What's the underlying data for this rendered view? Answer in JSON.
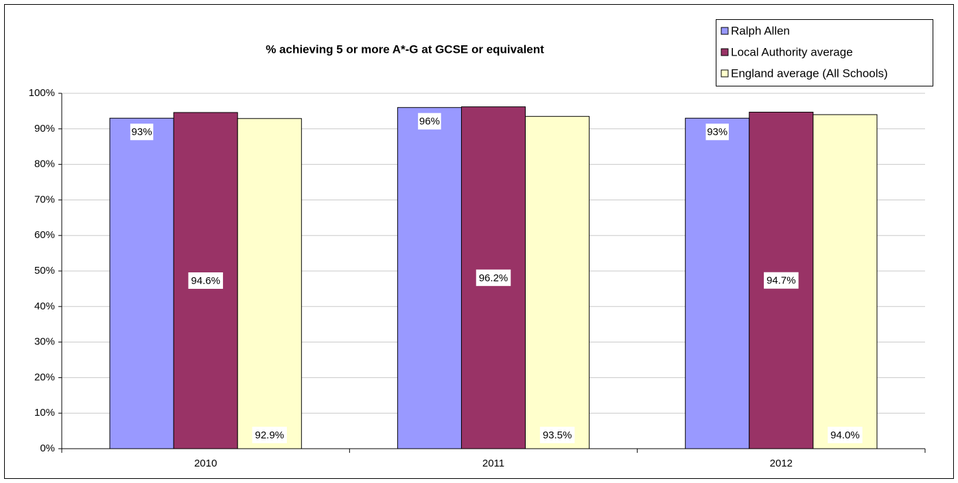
{
  "chart_data": {
    "type": "bar",
    "title": "% achieving 5 or more A*-G at GCSE or equivalent",
    "categories": [
      "2010",
      "2011",
      "2012"
    ],
    "series": [
      {
        "name": "Ralph Allen",
        "color": "#9999ff",
        "values": [
          93,
          96,
          93
        ],
        "value_labels": [
          "93%",
          "96%",
          "93%"
        ]
      },
      {
        "name": "Local Authority average",
        "color": "#993366",
        "values": [
          94.6,
          96.2,
          94.7
        ],
        "value_labels": [
          "94.6%",
          "96.2%",
          "94.7%"
        ]
      },
      {
        "name": "England average (All Schools)",
        "color": "#ffffcc",
        "values": [
          92.9,
          93.5,
          94.0
        ],
        "value_labels": [
          "92.9%",
          "93.5%",
          "94.0%"
        ]
      }
    ],
    "ylim": [
      0,
      100
    ],
    "yticks": [
      {
        "value": 0,
        "label": "0%"
      },
      {
        "value": 10,
        "label": "10%"
      },
      {
        "value": 20,
        "label": "20%"
      },
      {
        "value": 30,
        "label": "30%"
      },
      {
        "value": 40,
        "label": "40%"
      },
      {
        "value": 50,
        "label": "50%"
      },
      {
        "value": 60,
        "label": "60%"
      },
      {
        "value": 70,
        "label": "70%"
      },
      {
        "value": 80,
        "label": "80%"
      },
      {
        "value": 90,
        "label": "90%"
      },
      {
        "value": 100,
        "label": "100%"
      }
    ],
    "grid": true,
    "legend": "top-right"
  }
}
